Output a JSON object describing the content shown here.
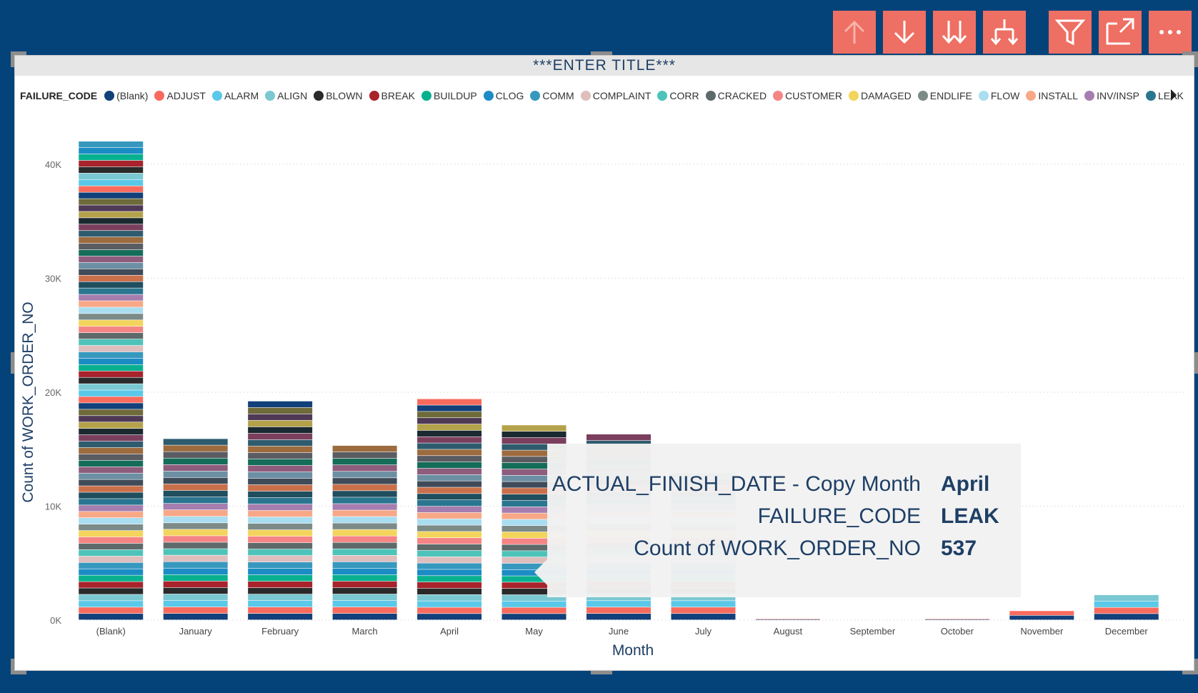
{
  "toolbar": {
    "buttons": [
      "drill-up-icon",
      "drill-down-icon",
      "expand-next-level-icon",
      "expand-hierarchy-icon",
      "filter-icon",
      "focus-mode-icon",
      "more-options-icon"
    ]
  },
  "visual": {
    "title": "***ENTER TITLE***"
  },
  "legend": {
    "title": "FAILURE_CODE",
    "items": [
      {
        "label": "(Blank)",
        "color": "#12407A"
      },
      {
        "label": "ADJUST",
        "color": "#F96B5D"
      },
      {
        "label": "ALARM",
        "color": "#5AC8E8"
      },
      {
        "label": "ALIGN",
        "color": "#7AC8D2"
      },
      {
        "label": "BLOWN",
        "color": "#2A2A2A"
      },
      {
        "label": "BREAK",
        "color": "#A8232C"
      },
      {
        "label": "BUILDUP",
        "color": "#08B08F"
      },
      {
        "label": "CLOG",
        "color": "#1B8CC4"
      },
      {
        "label": "COMM",
        "color": "#3798BE"
      },
      {
        "label": "COMPLAINT",
        "color": "#DFBEBE"
      },
      {
        "label": "CORR",
        "color": "#4EC3B9"
      },
      {
        "label": "CRACKED",
        "color": "#5E6A6A"
      },
      {
        "label": "CUSTOMER",
        "color": "#F58585"
      },
      {
        "label": "DAMAGED",
        "color": "#F3D45C"
      },
      {
        "label": "ENDLIFE",
        "color": "#7C8A88"
      },
      {
        "label": "FLOW",
        "color": "#A9DDF0"
      },
      {
        "label": "INSTALL",
        "color": "#F8A887"
      },
      {
        "label": "INV/INSP",
        "color": "#A57EAF"
      },
      {
        "label": "LEAK",
        "color": "#2A7690"
      }
    ]
  },
  "chart_data": {
    "type": "bar",
    "stacked": true,
    "xlabel": "Month",
    "ylabel": "Count of WORK_ORDER_NO",
    "ylim": [
      0,
      42000
    ],
    "yticks": [
      0,
      10000,
      20000,
      30000,
      40000
    ],
    "ytick_labels": [
      "0K",
      "10K",
      "20K",
      "30K",
      "40K"
    ],
    "grid": true,
    "categories": [
      "(Blank)",
      "January",
      "February",
      "March",
      "April",
      "May",
      "June",
      "July",
      "August",
      "September",
      "October",
      "November",
      "December"
    ],
    "totals": [
      42000,
      15900,
      19200,
      15300,
      19400,
      17100,
      16300,
      12900,
      100,
      0,
      100,
      800,
      2200
    ],
    "series_note": "Each bar is stacked by FAILURE_CODE; segment colors follow the legend palette."
  },
  "tooltip": {
    "rows": [
      {
        "label": "ACTUAL_FINISH_DATE - Copy Month",
        "value": "April"
      },
      {
        "label": "FAILURE_CODE",
        "value": "LEAK"
      },
      {
        "label": "Count of WORK_ORDER_NO",
        "value": "537"
      }
    ]
  },
  "colors": {
    "background": "#04437A",
    "toolbar_button": "#EE6F63",
    "title_text": "#1E3F66"
  }
}
